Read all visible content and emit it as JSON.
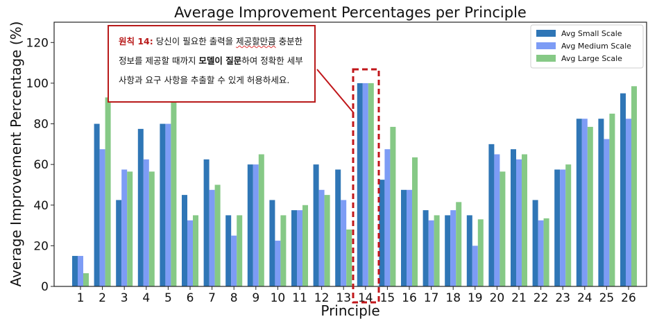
{
  "chart_data": {
    "type": "bar",
    "title": "Average Improvement Percentages per Principle",
    "xlabel": "Principle",
    "ylabel": "Average Improvement Percentage (%)",
    "ylim": [
      0,
      130
    ],
    "yticks": [
      0,
      20,
      40,
      60,
      80,
      100,
      120
    ],
    "categories": [
      "1",
      "2",
      "3",
      "4",
      "5",
      "6",
      "7",
      "8",
      "9",
      "10",
      "11",
      "12",
      "13",
      "14",
      "15",
      "16",
      "17",
      "18",
      "19",
      "20",
      "21",
      "22",
      "23",
      "24",
      "25",
      "26"
    ],
    "series": [
      {
        "name": "Avg Small Scale",
        "color": "#2f76b6",
        "values": [
          15,
          80,
          42.5,
          77.5,
          80,
          45,
          62.5,
          35,
          60,
          42.5,
          37.5,
          60,
          57.5,
          100,
          52.5,
          47.5,
          37.5,
          35,
          35,
          70,
          67.5,
          42.5,
          57.5,
          82.5,
          82.5,
          95
        ]
      },
      {
        "name": "Avg Medium Scale",
        "color": "#7d9cf5",
        "values": [
          15,
          67.5,
          57.5,
          62.5,
          80,
          32.5,
          47.5,
          25,
          60,
          22.5,
          37.5,
          47.5,
          42.5,
          100,
          67.5,
          47.5,
          32.5,
          37.5,
          20,
          65,
          62.5,
          32.5,
          57.5,
          82.5,
          72.5,
          82.5
        ]
      },
      {
        "name": "Avg Large Scale",
        "color": "#86c986",
        "values": [
          6.5,
          93,
          56.5,
          56.5,
          93,
          35,
          50,
          35,
          65,
          35,
          40,
          45,
          28,
          100,
          78.5,
          63.5,
          35,
          41.5,
          33,
          56.5,
          65,
          33.5,
          60,
          78.5,
          85,
          98.5
        ]
      }
    ],
    "legend_position": "top-right",
    "grid": false,
    "highlight_category": "14"
  },
  "callout": {
    "principle_label": "원칙 14:",
    "text_before": " 당신이 필요한 출력을 ",
    "squiggle_text": "제공할만큼",
    "text_middle": " 충분한 정보를 제공할 때까지 ",
    "emphasis": "모델이 질문",
    "text_after": "하여 정확한 세부 사항과 요구 사항을 추출할 수 있게 허용하세요."
  }
}
